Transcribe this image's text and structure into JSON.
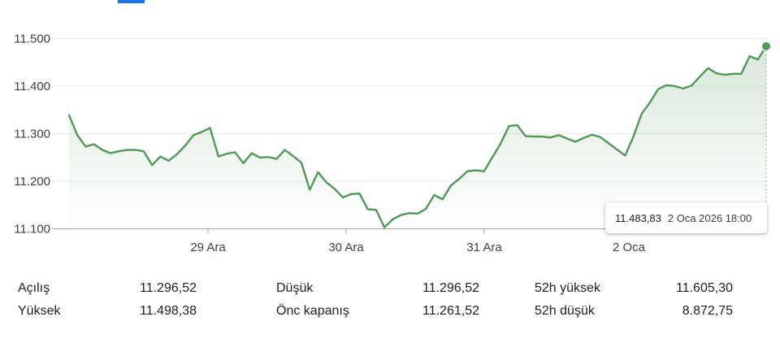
{
  "chart_data": {
    "type": "area",
    "yticks": [
      11100,
      11200,
      11300,
      11400,
      11500
    ],
    "ytick_labels": [
      "11.100",
      "11.200",
      "11.300",
      "11.400",
      "11.500"
    ],
    "ylim": [
      11100,
      11500
    ],
    "xtick_labels": [
      "29 Ara",
      "30 Ara",
      "31 Ara",
      "2 Oca"
    ],
    "series": [
      {
        "values": [
          11339,
          11297,
          11273,
          11278,
          11266,
          11259,
          11263,
          11266,
          11266,
          11263,
          11234,
          11252,
          11243,
          11257,
          11275,
          11297,
          11304,
          11312,
          11252,
          11258,
          11261,
          11238,
          11259,
          11250,
          11251,
          11247,
          11266,
          11253,
          11239,
          11182,
          11219,
          11198,
          11184,
          11166,
          11173,
          11174,
          11141,
          11140,
          11103,
          11120,
          11129,
          11133,
          11132,
          11142,
          11171,
          11162,
          11191,
          11205,
          11221,
          11223,
          11221,
          11250,
          11279,
          11316,
          11318,
          11295,
          11294,
          11294,
          11292,
          11297,
          11290,
          11283,
          11291,
          11298,
          11293,
          11280,
          11267,
          11254,
          11294,
          11342,
          11366,
          11394,
          11402,
          11400,
          11395,
          11401,
          11420,
          11438,
          11427,
          11424,
          11426,
          11426,
          11463,
          11456,
          11484
        ]
      }
    ],
    "line_color": "#4e9a56",
    "fill_color": "#4e9a56",
    "grid": true,
    "last_point": {
      "value_label": "11.483,83",
      "date_label": "2 Oca 2026 18:00"
    }
  },
  "stats": [
    {
      "label": "Açılış",
      "value": "11.296,52"
    },
    {
      "label": "Yüksek",
      "value": "11.498,38"
    },
    {
      "label": "Düşük",
      "value": "11.296,52"
    },
    {
      "label": "Önc kapanış",
      "value": "11.261,52"
    },
    {
      "label": "52h yüksek",
      "value": "11.605,30"
    },
    {
      "label": "52h düşük",
      "value": "8.872,75"
    }
  ]
}
